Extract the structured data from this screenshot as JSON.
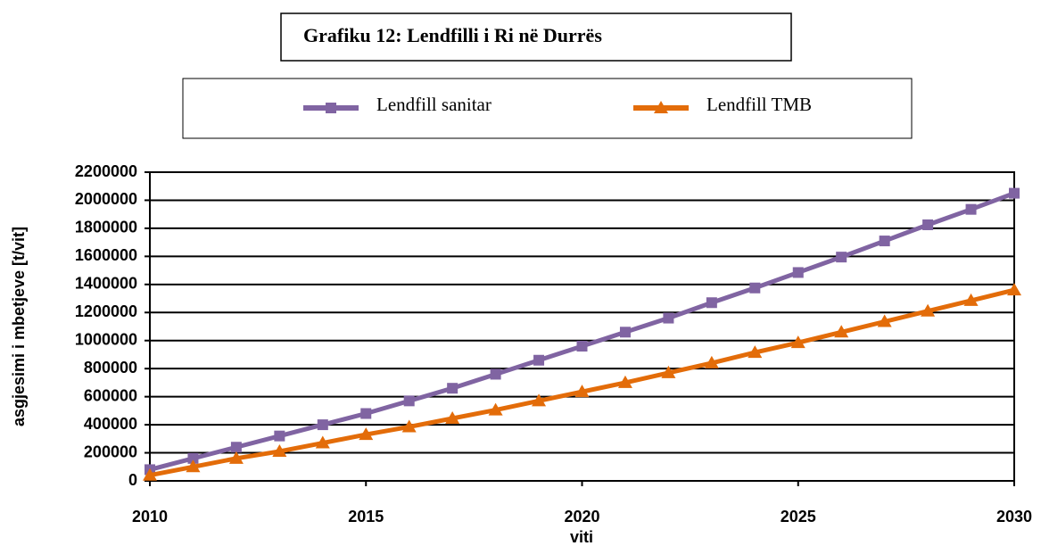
{
  "chart_data": {
    "type": "line",
    "title": "Grafiku 12: Lendfilli i Ri në Durrës",
    "x_label": "viti",
    "y_label": "asgjesimi i mbetjeve [t/vit]",
    "x": [
      2010,
      2011,
      2012,
      2013,
      2014,
      2015,
      2016,
      2017,
      2018,
      2019,
      2020,
      2021,
      2022,
      2023,
      2024,
      2025,
      2026,
      2027,
      2028,
      2029,
      2030
    ],
    "series": [
      {
        "name": "Lendfill sanitar",
        "color": "#8064a2",
        "marker": "square",
        "values": [
          80000,
          160000,
          240000,
          320000,
          400000,
          480000,
          570000,
          660000,
          760000,
          860000,
          960000,
          1060000,
          1160000,
          1270000,
          1375000,
          1485000,
          1595000,
          1710000,
          1825000,
          1935000,
          2050000
        ]
      },
      {
        "name": "Lendfill TMB",
        "color": "#e36c09",
        "marker": "triangle",
        "values": [
          40000,
          100000,
          160000,
          210000,
          270000,
          330000,
          385000,
          445000,
          505000,
          570000,
          635000,
          700000,
          770000,
          840000,
          915000,
          985000,
          1060000,
          1135000,
          1210000,
          1285000,
          1360000
        ]
      }
    ],
    "xlim": [
      2010,
      2030
    ],
    "xticks": [
      2010,
      2015,
      2020,
      2025,
      2030
    ],
    "ylim": [
      0,
      2200000
    ],
    "yticks": [
      0,
      200000,
      400000,
      600000,
      800000,
      1000000,
      1200000,
      1400000,
      1600000,
      1800000,
      2000000,
      2200000
    ],
    "grid": true
  }
}
